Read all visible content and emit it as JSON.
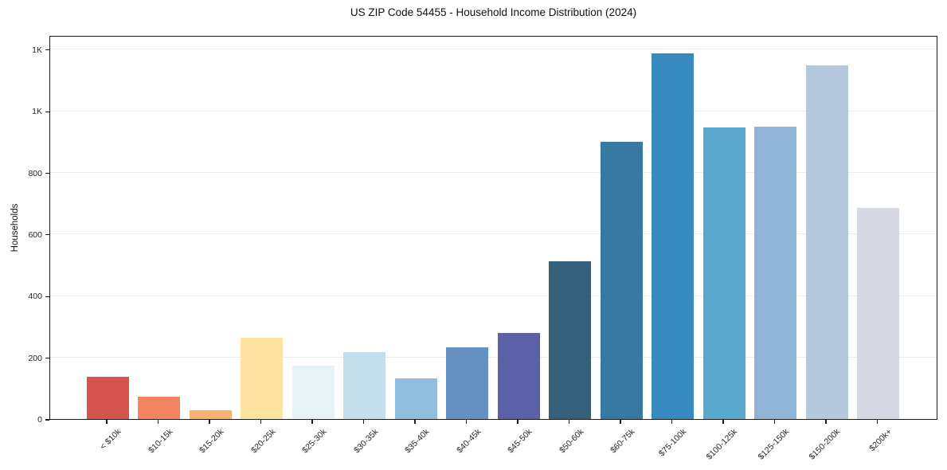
{
  "figure": {
    "background": "#ffffff"
  },
  "chart_data": {
    "type": "bar",
    "title": "US ZIP Code 54455 - Household Income Distribution (2024)",
    "xlabel": "",
    "ylabel": "Households",
    "categories": [
      "< $10k",
      "$10-15k",
      "$15-20k",
      "$20-25k",
      "$25-30k",
      "$30-35k",
      "$35-40k",
      "$40-45k",
      "$45-50k",
      "$50-60k",
      "$60-75k",
      "$75-100k",
      "$100-125k",
      "$125-150k",
      "$150-200k",
      "$200k+"
    ],
    "values": [
      137,
      72,
      28,
      265,
      172,
      216,
      133,
      232,
      278,
      512,
      900,
      1187,
      946,
      949,
      1147,
      686
    ],
    "bar_colors": [
      "#d5544d",
      "#f0855f",
      "#f9b26e",
      "#fde3a0",
      "#e7f2f7",
      "#c3dfee",
      "#90bedf",
      "#6590c2",
      "#5b60a8",
      "#35607a",
      "#3779a2",
      "#388bc0",
      "#5aa8cd",
      "#8fb4d7",
      "#b6c8de",
      "#d6d8e4"
    ],
    "ylim": [
      0,
      1246
    ],
    "yticks": {
      "values": [
        0,
        200,
        400,
        600,
        800,
        1000,
        1200
      ],
      "labels": [
        "0",
        "200",
        "400",
        "600",
        "800",
        "1K",
        "1K"
      ]
    },
    "grid": "horizontal",
    "legend": "none",
    "x_tick_rotation": 45
  }
}
